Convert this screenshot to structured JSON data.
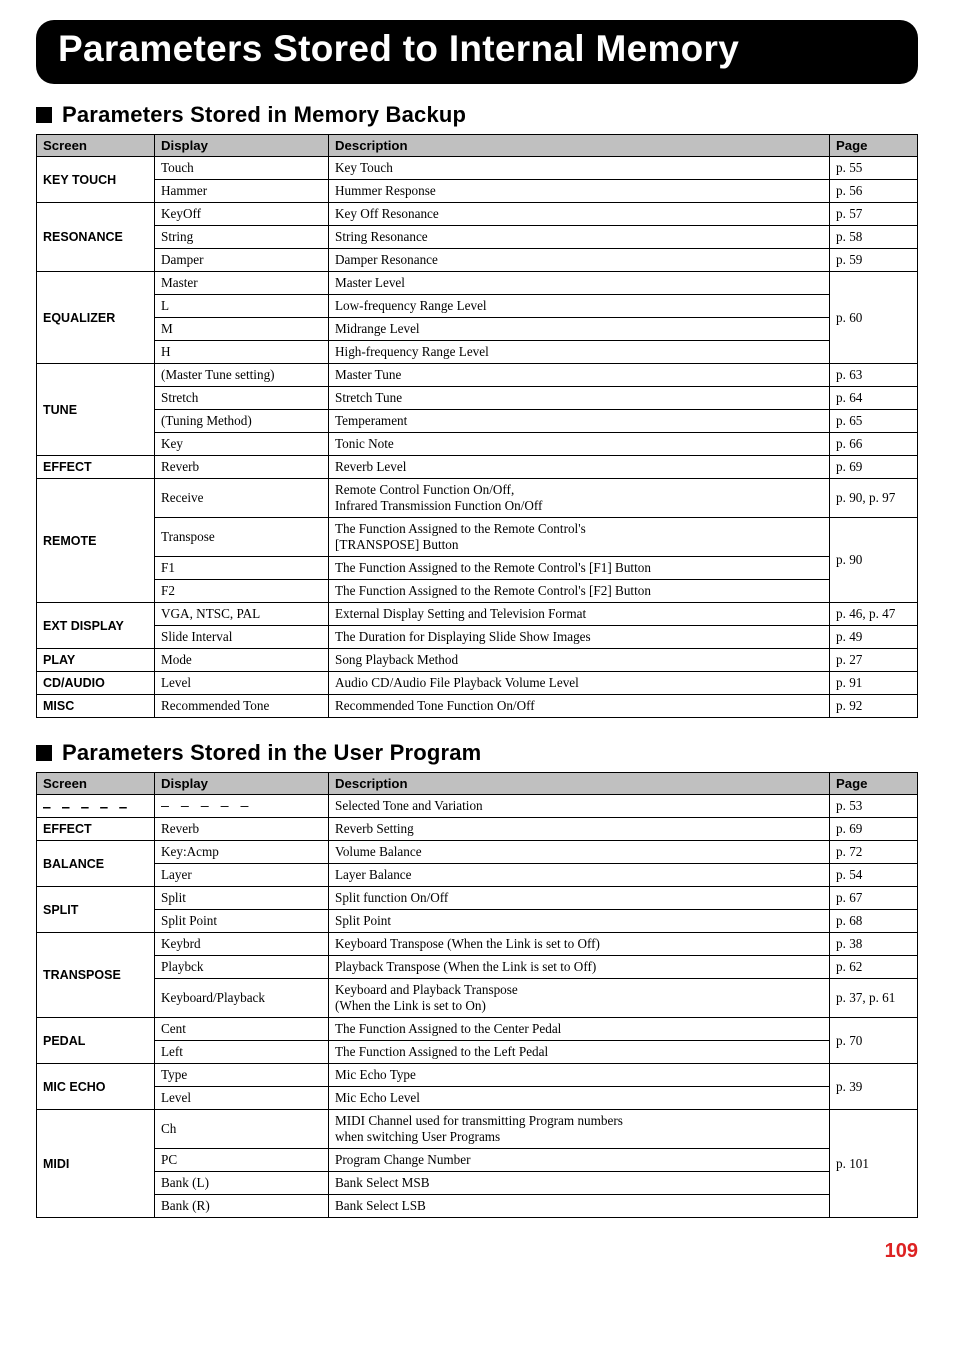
{
  "page_title": "Parameters Stored to Internal Memory",
  "page_number": "109",
  "sections": [
    {
      "heading": "Parameters Stored in Memory Backup",
      "columns": {
        "screen": "Screen",
        "display": "Display",
        "description": "Description",
        "page": "Page"
      },
      "groups": [
        {
          "screen": "KEY TOUCH",
          "rows": [
            {
              "display": "Touch",
              "description": "Key Touch",
              "page": "p. 55"
            },
            {
              "display": "Hammer",
              "description": "Hummer Response",
              "page": "p. 56"
            }
          ]
        },
        {
          "screen": "RESONANCE",
          "rows": [
            {
              "display": "KeyOff",
              "description": "Key Off Resonance",
              "page": "p. 57"
            },
            {
              "display": "String",
              "description": "String Resonance",
              "page": "p. 58"
            },
            {
              "display": "Damper",
              "description": "Damper Resonance",
              "page": "p. 59"
            }
          ]
        },
        {
          "screen": "EQUALIZER",
          "page_span": "p. 60",
          "rows": [
            {
              "display": "Master",
              "description": "Master Level"
            },
            {
              "display": "L",
              "description": "Low-frequency Range Level"
            },
            {
              "display": "M",
              "description": "Midrange Level"
            },
            {
              "display": "H",
              "description": "High-frequency Range Level"
            }
          ]
        },
        {
          "screen": "TUNE",
          "rows": [
            {
              "display": "(Master Tune setting)",
              "description": "Master Tune",
              "page": "p. 63"
            },
            {
              "display": "Stretch",
              "description": "Stretch Tune",
              "page": "p. 64"
            },
            {
              "display": "(Tuning Method)",
              "description": "Temperament",
              "page": "p. 65"
            },
            {
              "display": "Key",
              "description": "Tonic Note",
              "page": "p. 66"
            }
          ]
        },
        {
          "screen": "EFFECT",
          "rows": [
            {
              "display": "Reverb",
              "description": "Reverb Level",
              "page": "p. 69"
            }
          ]
        },
        {
          "screen": "REMOTE",
          "rows": [
            {
              "display": "Receive",
              "description": "Remote Control Function On/Off,\nInfrared Transmission Function On/Off",
              "page": "p. 90, p. 97"
            },
            {
              "display": "Transpose",
              "description": "The Function Assigned to the Remote Control's\n[TRANSPOSE] Button",
              "page_span_start": true,
              "page_span": "p. 90",
              "page_rowspan": 3
            },
            {
              "display": "F1",
              "description": "The Function Assigned to the Remote Control's [F1] Button"
            },
            {
              "display": "F2",
              "description": "The Function Assigned to the Remote Control's [F2] Button"
            }
          ]
        },
        {
          "screen": "EXT DISPLAY",
          "rows": [
            {
              "display": "VGA, NTSC, PAL",
              "description": "External Display Setting and Television Format",
              "page": "p. 46, p. 47"
            },
            {
              "display": "Slide Interval",
              "description": "The Duration for Displaying Slide Show Images",
              "page": "p. 49"
            }
          ]
        },
        {
          "screen": "PLAY",
          "rows": [
            {
              "display": "Mode",
              "description": "Song Playback Method",
              "page": "p. 27"
            }
          ]
        },
        {
          "screen": "CD/AUDIO",
          "rows": [
            {
              "display": "Level",
              "description": "Audio CD/Audio File Playback Volume Level",
              "page": "p. 91"
            }
          ]
        },
        {
          "screen": "MISC",
          "rows": [
            {
              "display": "Recommended Tone",
              "description": "Recommended Tone Function On/Off",
              "page": "p. 92"
            }
          ]
        }
      ]
    },
    {
      "heading": "Parameters Stored in the User Program",
      "columns": {
        "screen": "Screen",
        "display": "Display",
        "description": "Description",
        "page": "Page"
      },
      "groups": [
        {
          "screen": "– – – – –",
          "dashes": true,
          "rows": [
            {
              "display": "– – – – –",
              "dashes": true,
              "description": "Selected Tone and Variation",
              "page": "p. 53"
            }
          ]
        },
        {
          "screen": "EFFECT",
          "rows": [
            {
              "display": "Reverb",
              "description": "Reverb Setting",
              "page": "p. 69"
            }
          ]
        },
        {
          "screen": "BALANCE",
          "rows": [
            {
              "display": "Key:Acmp",
              "description": "Volume Balance",
              "page": "p. 72"
            },
            {
              "display": "Layer",
              "description": "Layer Balance",
              "page": "p. 54"
            }
          ]
        },
        {
          "screen": "SPLIT",
          "rows": [
            {
              "display": "Split",
              "description": "Split function On/Off",
              "page": "p. 67"
            },
            {
              "display": "Split Point",
              "description": "Split Point",
              "page": "p. 68"
            }
          ]
        },
        {
          "screen": "TRANSPOSE",
          "rows": [
            {
              "display": "Keybrd",
              "description": "Keyboard Transpose (When the Link is set to Off)",
              "page": "p. 38"
            },
            {
              "display": "Playbck",
              "description": "Playback Transpose (When the Link is set to Off)",
              "page": "p. 62"
            },
            {
              "display": "Keyboard/Playback",
              "description": "Keyboard and Playback Transpose\n(When the Link is set to On)",
              "page": "p. 37, p. 61"
            }
          ]
        },
        {
          "screen": "PEDAL",
          "page_span": "p. 70",
          "rows": [
            {
              "display": "Cent",
              "description": "The Function Assigned to the Center Pedal"
            },
            {
              "display": "Left",
              "description": "The Function Assigned to the Left Pedal"
            }
          ]
        },
        {
          "screen": "MIC ECHO",
          "page_span": "p. 39",
          "rows": [
            {
              "display": "Type",
              "description": "Mic Echo Type"
            },
            {
              "display": "Level",
              "description": "Mic Echo Level"
            }
          ]
        },
        {
          "screen": "MIDI",
          "page_span": "p. 101",
          "rows": [
            {
              "display": "Ch",
              "description": "MIDI Channel used for transmitting Program numbers\nwhen switching User Programs"
            },
            {
              "display": "PC",
              "description": "Program Change Number"
            },
            {
              "display": "Bank (L)",
              "description": "Bank Select MSB"
            },
            {
              "display": "Bank (R)",
              "description": "Bank Select LSB"
            }
          ]
        }
      ]
    }
  ]
}
